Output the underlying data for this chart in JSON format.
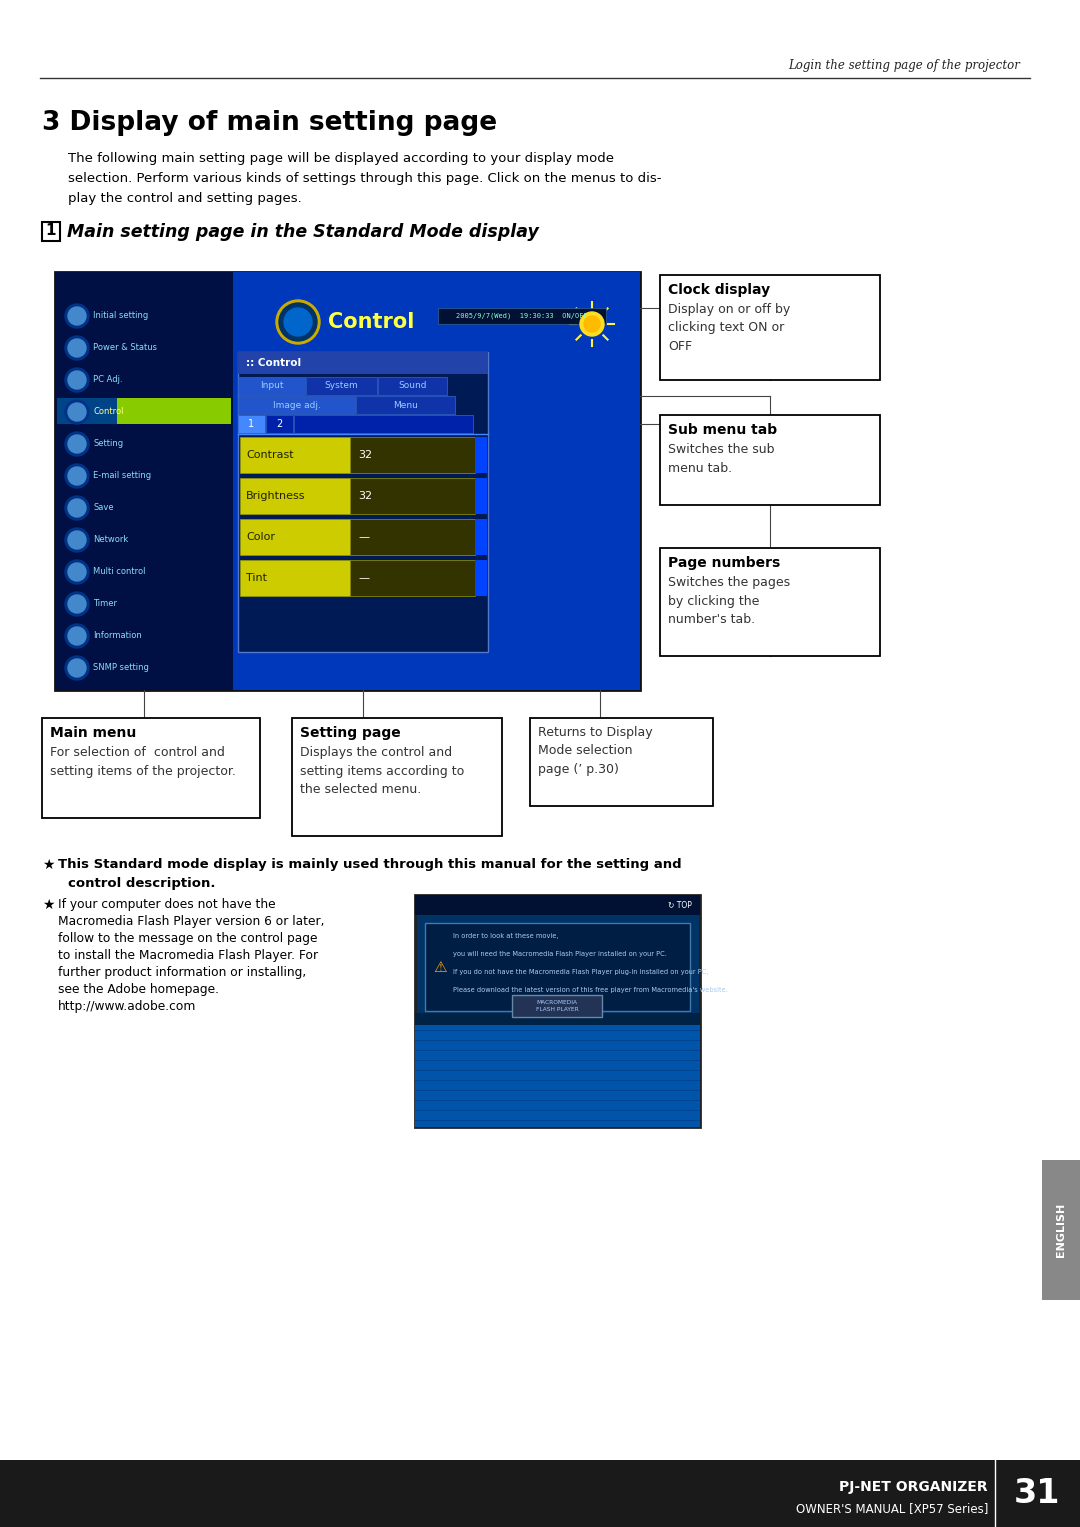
{
  "page_bg": "#ffffff",
  "header_italic": "Login the setting page of the projector",
  "chapter_title": "3 Display of main setting page",
  "intro_line1": "The following main setting page will be displayed according to your display mode",
  "intro_line2": "selection. Perform various kinds of settings through this page. Click on the menus to dis-",
  "intro_line3": "play the control and setting pages.",
  "section_num": "1",
  "section_title": "Main setting page in the Standard Mode display",
  "right_box1_title": "Clock display",
  "right_box1_body": "Display on or off by\nclicking text ON or\nOFF",
  "right_box2_title": "Sub menu tab",
  "right_box2_body": "Switches the sub\nmenu tab.",
  "right_box3_title": "Page numbers",
  "right_box3_body": "Switches the pages\nby clicking the\nnumber's tab.",
  "bottom_box1_title": "Main menu",
  "bottom_box1_body": "For selection of  control and\nsetting items of the projector.",
  "bottom_box2_title": "Setting page",
  "bottom_box2_body": "Displays the control and\nsetting items according to\nthe selected menu.",
  "bottom_box3_body": "Returns to Display\nMode selection\npage (’ p.30)",
  "note1_bold": "This Standard mode display is mainly used through this manual for the setting and",
  "note1_bold2": "control description.",
  "note2_line1": "If your computer does not have the",
  "note2_line2": "Macromedia Flash Player version 6 or later,",
  "note2_line3": "follow to the message on the control page",
  "note2_line4": "to install the Macromedia Flash Player. For",
  "note2_line5": "further product information or installing,",
  "note2_line6": "see the Adobe homepage.",
  "note2_line7": "http://www.adobe.com",
  "footer_title": "PJ-NET ORGANIZER",
  "footer_subtitle": "OWNER'S MANUAL [XP57 Series]",
  "footer_page": "31",
  "english_tab": "ENGLISH",
  "screen_bg": "#001a55",
  "screen_left_bg": "#001044",
  "screen_right_bg": "#0038bb",
  "menu_items": [
    "Initial setting",
    "Power & Status",
    "PC Adj.",
    "Control",
    "Setting",
    "E-mail setting",
    "Save",
    "Network",
    "Multi control",
    "Timer",
    "Information",
    "SNMP setting"
  ],
  "settings_rows": [
    [
      "Contrast",
      "32"
    ],
    [
      "Brightness",
      "32"
    ],
    [
      "Color",
      "—"
    ],
    [
      "Tint",
      "—"
    ]
  ]
}
